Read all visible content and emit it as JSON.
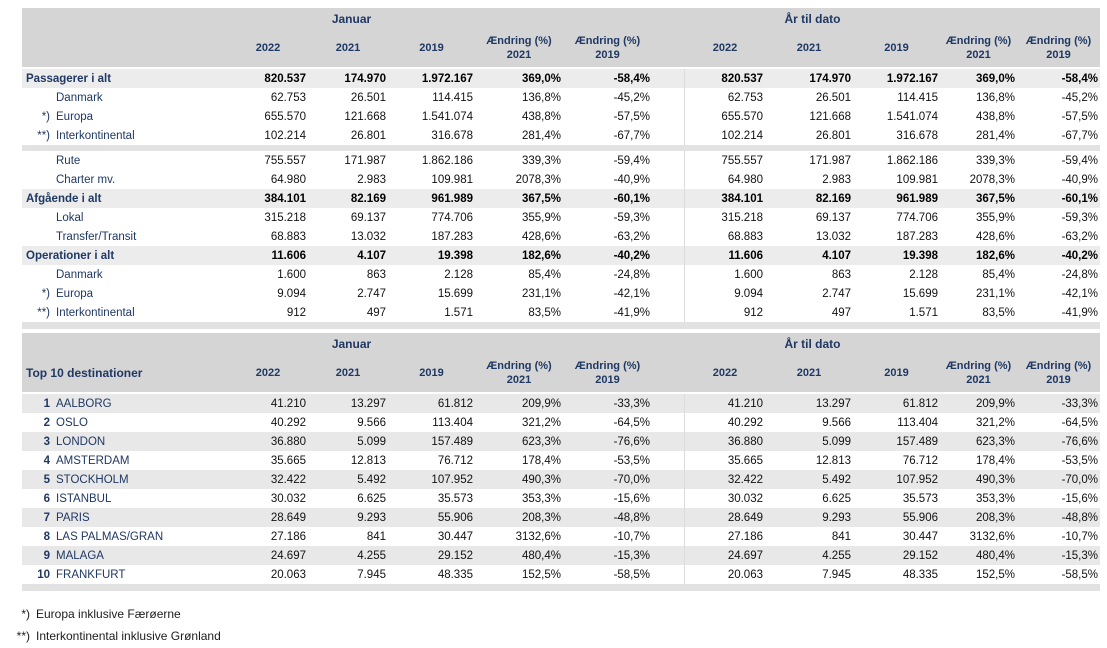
{
  "periods": {
    "jan": "Januar",
    "ytd": "År til dato"
  },
  "columns": [
    {
      "line1": "2022",
      "line2": ""
    },
    {
      "line1": "2021",
      "line2": ""
    },
    {
      "line1": "2019",
      "line2": ""
    },
    {
      "line1": "Ændring (%)",
      "line2": "2021"
    },
    {
      "line1": "Ændring (%)",
      "line2": "2019"
    }
  ],
  "summary": {
    "rows": [
      {
        "type": "total",
        "prefix": "",
        "label": "Passagerer i alt",
        "jan": [
          "820.537",
          "174.970",
          "1.972.167",
          "369,0%",
          "-58,4%"
        ],
        "ytd": [
          "820.537",
          "174.970",
          "1.972.167",
          "369,0%",
          "-58,4%"
        ]
      },
      {
        "type": "sub",
        "prefix": "",
        "label": "Danmark",
        "jan": [
          "62.753",
          "26.501",
          "114.415",
          "136,8%",
          "-45,2%"
        ],
        "ytd": [
          "62.753",
          "26.501",
          "114.415",
          "136,8%",
          "-45,2%"
        ]
      },
      {
        "type": "sub",
        "prefix": "*)",
        "label": "Europa",
        "jan": [
          "655.570",
          "121.668",
          "1.541.074",
          "438,8%",
          "-57,5%"
        ],
        "ytd": [
          "655.570",
          "121.668",
          "1.541.074",
          "438,8%",
          "-57,5%"
        ]
      },
      {
        "type": "sub",
        "prefix": "**)",
        "label": "Interkontinental",
        "jan": [
          "102.214",
          "26.801",
          "316.678",
          "281,4%",
          "-67,7%"
        ],
        "ytd": [
          "102.214",
          "26.801",
          "316.678",
          "281,4%",
          "-67,7%"
        ]
      },
      {
        "type": "spacer"
      },
      {
        "type": "sub",
        "prefix": "",
        "label": "Rute",
        "jan": [
          "755.557",
          "171.987",
          "1.862.186",
          "339,3%",
          "-59,4%"
        ],
        "ytd": [
          "755.557",
          "171.987",
          "1.862.186",
          "339,3%",
          "-59,4%"
        ]
      },
      {
        "type": "sub",
        "prefix": "",
        "label": "Charter mv.",
        "jan": [
          "64.980",
          "2.983",
          "109.981",
          "2078,3%",
          "-40,9%"
        ],
        "ytd": [
          "64.980",
          "2.983",
          "109.981",
          "2078,3%",
          "-40,9%"
        ]
      },
      {
        "type": "total",
        "prefix": "",
        "label": "Afgående i alt",
        "jan": [
          "384.101",
          "82.169",
          "961.989",
          "367,5%",
          "-60,1%"
        ],
        "ytd": [
          "384.101",
          "82.169",
          "961.989",
          "367,5%",
          "-60,1%"
        ]
      },
      {
        "type": "sub",
        "prefix": "",
        "label": "Lokal",
        "jan": [
          "315.218",
          "69.137",
          "774.706",
          "355,9%",
          "-59,3%"
        ],
        "ytd": [
          "315.218",
          "69.137",
          "774.706",
          "355,9%",
          "-59,3%"
        ]
      },
      {
        "type": "sub",
        "prefix": "",
        "label": "Transfer/Transit",
        "jan": [
          "68.883",
          "13.032",
          "187.283",
          "428,6%",
          "-63,2%"
        ],
        "ytd": [
          "68.883",
          "13.032",
          "187.283",
          "428,6%",
          "-63,2%"
        ]
      },
      {
        "type": "total",
        "prefix": "",
        "label": "Operationer i alt",
        "jan": [
          "11.606",
          "4.107",
          "19.398",
          "182,6%",
          "-40,2%"
        ],
        "ytd": [
          "11.606",
          "4.107",
          "19.398",
          "182,6%",
          "-40,2%"
        ]
      },
      {
        "type": "sub",
        "prefix": "",
        "label": "Danmark",
        "jan": [
          "1.600",
          "863",
          "2.128",
          "85,4%",
          "-24,8%"
        ],
        "ytd": [
          "1.600",
          "863",
          "2.128",
          "85,4%",
          "-24,8%"
        ]
      },
      {
        "type": "sub",
        "prefix": "*)",
        "label": "Europa",
        "jan": [
          "9.094",
          "2.747",
          "15.699",
          "231,1%",
          "-42,1%"
        ],
        "ytd": [
          "9.094",
          "2.747",
          "15.699",
          "231,1%",
          "-42,1%"
        ]
      },
      {
        "type": "sub",
        "prefix": "**)",
        "label": "Interkontinental",
        "jan": [
          "912",
          "497",
          "1.571",
          "83,5%",
          "-41,9%"
        ],
        "ytd": [
          "912",
          "497",
          "1.571",
          "83,5%",
          "-41,9%"
        ]
      }
    ]
  },
  "top10": {
    "title": "Top 10 destinationer",
    "rows": [
      {
        "type": "sub",
        "rank": "1",
        "label": "AALBORG",
        "jan": [
          "41.210",
          "13.297",
          "61.812",
          "209,9%",
          "-33,3%"
        ],
        "ytd": [
          "41.210",
          "13.297",
          "61.812",
          "209,9%",
          "-33,3%"
        ]
      },
      {
        "type": "sub",
        "rank": "2",
        "label": "OSLO",
        "jan": [
          "40.292",
          "9.566",
          "113.404",
          "321,2%",
          "-64,5%"
        ],
        "ytd": [
          "40.292",
          "9.566",
          "113.404",
          "321,2%",
          "-64,5%"
        ]
      },
      {
        "type": "sub",
        "rank": "3",
        "label": "LONDON",
        "jan": [
          "36.880",
          "5.099",
          "157.489",
          "623,3%",
          "-76,6%"
        ],
        "ytd": [
          "36.880",
          "5.099",
          "157.489",
          "623,3%",
          "-76,6%"
        ]
      },
      {
        "type": "sub",
        "rank": "4",
        "label": "AMSTERDAM",
        "jan": [
          "35.665",
          "12.813",
          "76.712",
          "178,4%",
          "-53,5%"
        ],
        "ytd": [
          "35.665",
          "12.813",
          "76.712",
          "178,4%",
          "-53,5%"
        ]
      },
      {
        "type": "sub",
        "rank": "5",
        "label": "STOCKHOLM",
        "jan": [
          "32.422",
          "5.492",
          "107.952",
          "490,3%",
          "-70,0%"
        ],
        "ytd": [
          "32.422",
          "5.492",
          "107.952",
          "490,3%",
          "-70,0%"
        ]
      },
      {
        "type": "sub",
        "rank": "6",
        "label": "ISTANBUL",
        "jan": [
          "30.032",
          "6.625",
          "35.573",
          "353,3%",
          "-15,6%"
        ],
        "ytd": [
          "30.032",
          "6.625",
          "35.573",
          "353,3%",
          "-15,6%"
        ]
      },
      {
        "type": "sub",
        "rank": "7",
        "label": "PARIS",
        "jan": [
          "28.649",
          "9.293",
          "55.906",
          "208,3%",
          "-48,8%"
        ],
        "ytd": [
          "28.649",
          "9.293",
          "55.906",
          "208,3%",
          "-48,8%"
        ]
      },
      {
        "type": "sub",
        "rank": "8",
        "label": "LAS PALMAS/GRAN",
        "jan": [
          "27.186",
          "841",
          "30.447",
          "3132,6%",
          "-10,7%"
        ],
        "ytd": [
          "27.186",
          "841",
          "30.447",
          "3132,6%",
          "-10,7%"
        ]
      },
      {
        "type": "sub",
        "rank": "9",
        "label": "MALAGA",
        "jan": [
          "24.697",
          "4.255",
          "29.152",
          "480,4%",
          "-15,3%"
        ],
        "ytd": [
          "24.697",
          "4.255",
          "29.152",
          "480,4%",
          "-15,3%"
        ]
      },
      {
        "type": "sub",
        "rank": "10",
        "label": "FRANKFURT",
        "jan": [
          "20.063",
          "7.945",
          "48.335",
          "152,5%",
          "-58,5%"
        ],
        "ytd": [
          "20.063",
          "7.945",
          "48.335",
          "152,5%",
          "-58,5%"
        ]
      }
    ]
  },
  "footnotes": [
    {
      "marker": "*)",
      "text": "Europa inklusive Færøerne"
    },
    {
      "marker": "**)",
      "text": "Interkontinental inklusive Grønland"
    }
  ],
  "colors": {
    "header_bg": "#D5D5D5",
    "total_row_bg": "#ECECEC",
    "stripe_bg": "#E8E8E8",
    "spacer_bg": "#E2E2E2",
    "navy_text": "#1F3864",
    "number_text": "#111111"
  }
}
